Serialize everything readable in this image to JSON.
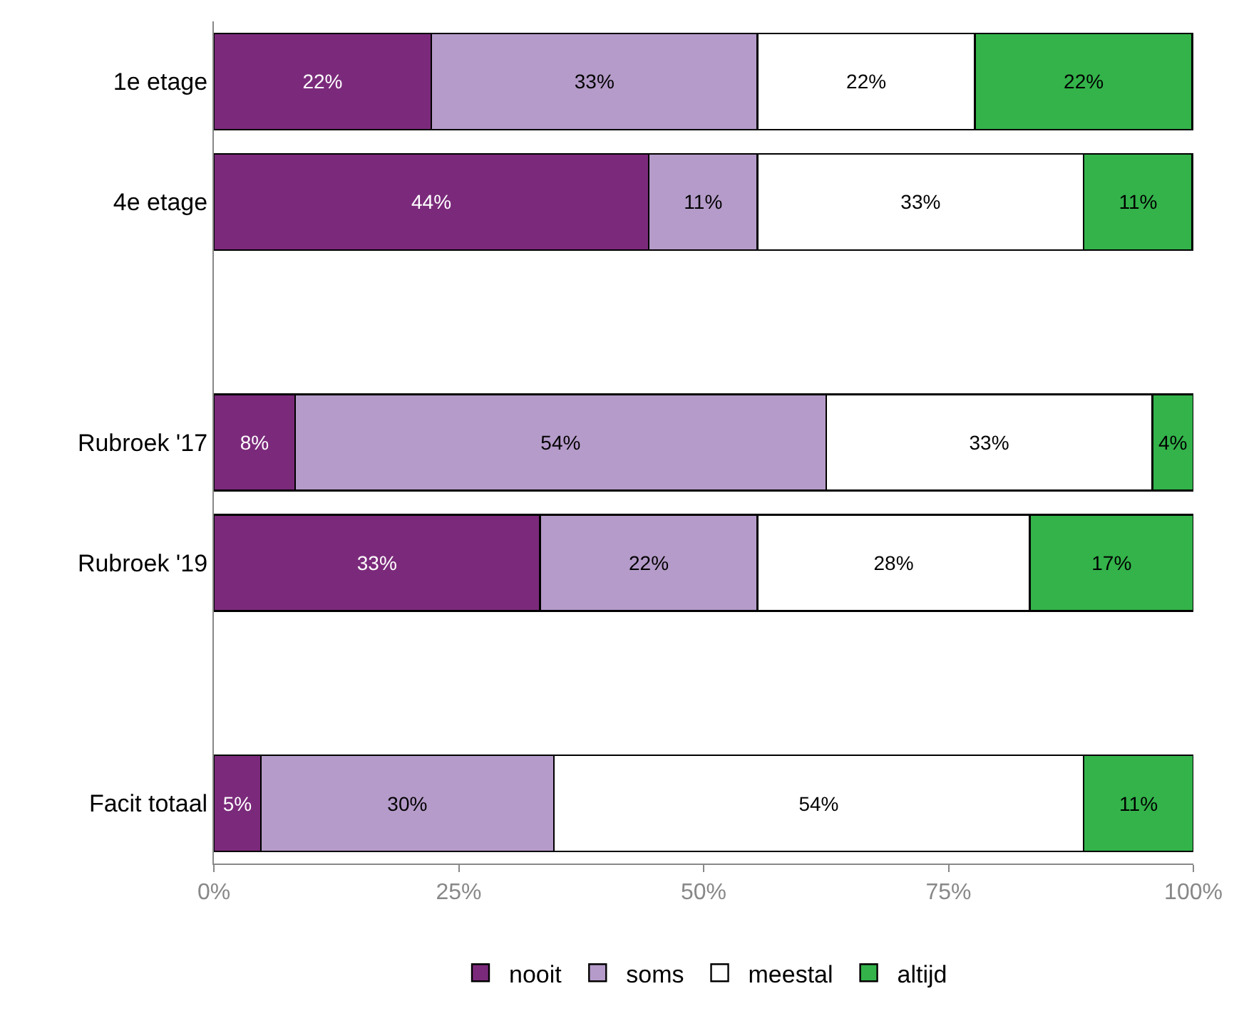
{
  "chart_data": {
    "type": "bar",
    "orientation": "horizontal",
    "stacked": true,
    "categories": [
      "1e etage",
      "4e etage",
      null,
      "Rubroek '17",
      "Rubroek '19",
      null,
      "Facit totaal"
    ],
    "series": [
      {
        "name": "nooit",
        "color": "#7b2a7b",
        "values": [
          22.2,
          44.4,
          null,
          8.3,
          33.3,
          null,
          4.8
        ],
        "value_labels": [
          "22%",
          "44%",
          null,
          "8%",
          "33%",
          null,
          "5%"
        ]
      },
      {
        "name": "soms",
        "color": "#b59bc9",
        "values": [
          33.3,
          11.1,
          null,
          54.2,
          22.2,
          null,
          29.9
        ],
        "value_labels": [
          "33%",
          "11%",
          null,
          "54%",
          "22%",
          null,
          "30%"
        ]
      },
      {
        "name": "meestal",
        "color": "#ffffff",
        "values": [
          22.2,
          33.3,
          null,
          33.3,
          27.8,
          null,
          54.1
        ],
        "value_labels": [
          "22%",
          "33%",
          null,
          "33%",
          "28%",
          null,
          "54%"
        ]
      },
      {
        "name": "altijd",
        "color": "#33b34a",
        "values": [
          22.2,
          11.1,
          null,
          4.2,
          16.7,
          null,
          11.2
        ],
        "value_labels": [
          "22%",
          "11%",
          null,
          "4%",
          "17%",
          null,
          "11%"
        ]
      }
    ],
    "xlim": [
      0,
      100
    ],
    "xticks": [
      {
        "value": 0,
        "label": "0%"
      },
      {
        "value": 25,
        "label": "25%"
      },
      {
        "value": 50,
        "label": "50%"
      },
      {
        "value": 75,
        "label": "75%"
      },
      {
        "value": 100,
        "label": "100%"
      }
    ],
    "legend": "bottom"
  }
}
